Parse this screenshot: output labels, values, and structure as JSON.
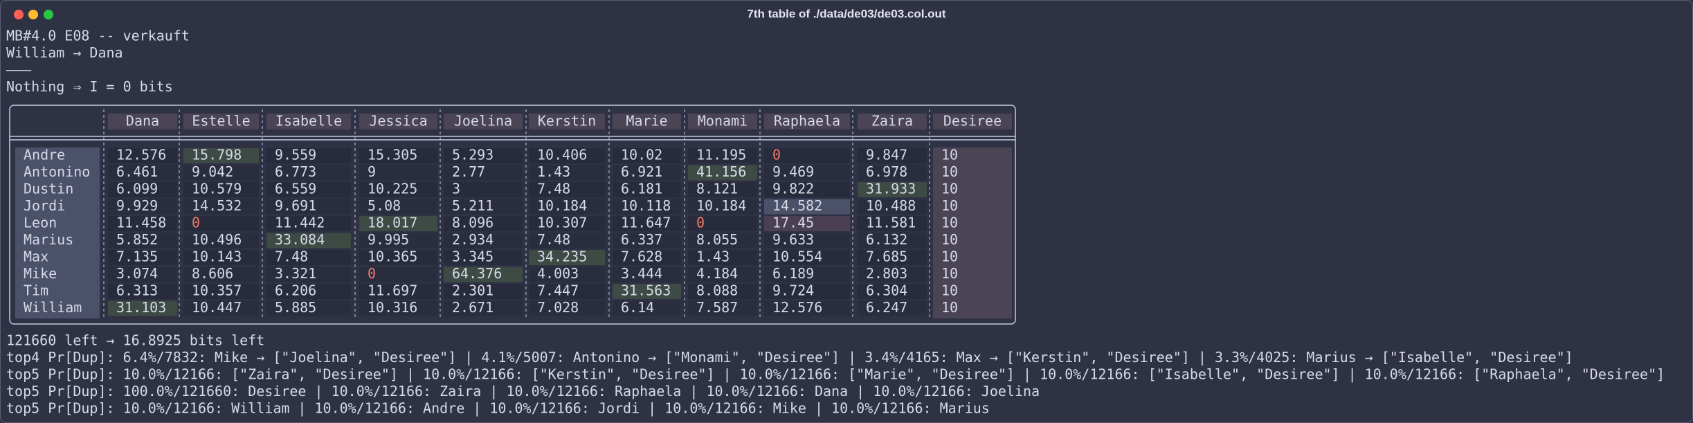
{
  "window_title": "7th table of ./data/de03/de03.col.out",
  "header_lines": [
    "MB#4.0 E08 -- verkauft",
    "William → Dana",
    "———",
    "Nothing ⇒ I = 0 bits"
  ],
  "table": {
    "columns": [
      "Dana",
      "Estelle",
      "Isabelle",
      "Jessica",
      "Joelina",
      "Kerstin",
      "Marie",
      "Monami",
      "Raphaela",
      "Zaira",
      "Desiree"
    ],
    "rows": [
      {
        "label": "Andre",
        "cells": [
          "12.576",
          "15.798",
          "9.559",
          "15.305",
          "5.293",
          "10.406",
          "10.02",
          "11.195",
          "0",
          "9.847",
          "10"
        ]
      },
      {
        "label": "Antonino",
        "cells": [
          "6.461",
          "9.042",
          "6.773",
          "9",
          "2.77",
          "1.43",
          "6.921",
          "41.156",
          "9.469",
          "6.978",
          "10"
        ]
      },
      {
        "label": "Dustin",
        "cells": [
          "6.099",
          "10.579",
          "6.559",
          "10.225",
          "3",
          "7.48",
          "6.181",
          "8.121",
          "9.822",
          "31.933",
          "10"
        ]
      },
      {
        "label": "Jordi",
        "cells": [
          "9.929",
          "14.532",
          "9.691",
          "5.08",
          "5.211",
          "10.184",
          "10.118",
          "10.184",
          "14.582",
          "10.488",
          "10"
        ]
      },
      {
        "label": "Leon",
        "cells": [
          "11.458",
          "0",
          "11.442",
          "18.017",
          "8.096",
          "10.307",
          "11.647",
          "0",
          "17.45",
          "11.581",
          "10"
        ]
      },
      {
        "label": "Marius",
        "cells": [
          "5.852",
          "10.496",
          "33.084",
          "9.995",
          "2.934",
          "7.48",
          "6.337",
          "8.055",
          "9.633",
          "6.132",
          "10"
        ]
      },
      {
        "label": "Max",
        "cells": [
          "7.135",
          "10.143",
          "7.48",
          "10.365",
          "3.345",
          "34.235",
          "7.628",
          "1.43",
          "10.554",
          "7.685",
          "10"
        ]
      },
      {
        "label": "Mike",
        "cells": [
          "3.074",
          "8.606",
          "3.321",
          "0",
          "64.376",
          "4.003",
          "3.444",
          "4.184",
          "6.189",
          "2.803",
          "10"
        ]
      },
      {
        "label": "Tim",
        "cells": [
          "6.313",
          "10.357",
          "6.206",
          "11.697",
          "2.301",
          "7.447",
          "31.563",
          "8.088",
          "9.724",
          "6.304",
          "10"
        ]
      },
      {
        "label": "William",
        "cells": [
          "31.103",
          "10.447",
          "5.885",
          "10.316",
          "2.671",
          "7.028",
          "6.14",
          "7.587",
          "12.576",
          "6.247",
          "10"
        ]
      }
    ]
  },
  "footer_lines": [
    "121660 left → 16.8925 bits left",
    "top4 Pr[Dup]: 6.4%/7832: Mike → [\"Joelina\", \"Desiree\"] | 4.1%/5007: Antonino → [\"Monami\", \"Desiree\"] | 3.4%/4165: Max → [\"Kerstin\", \"Desiree\"] | 3.3%/4025: Marius → [\"Isabelle\", \"Desiree\"]",
    "top5 Pr[Dup]: 10.0%/12166: [\"Zaira\", \"Desiree\"] | 10.0%/12166: [\"Kerstin\", \"Desiree\"] | 10.0%/12166: [\"Marie\", \"Desiree\"] | 10.0%/12166: [\"Isabelle\", \"Desiree\"] | 10.0%/12166: [\"Raphaela\", \"Desiree\"]",
    "top5 Pr[Dup]: 100.0%/121660: Desiree | 10.0%/12166: Zaira | 10.0%/12166: Raphaela | 10.0%/12166: Dana | 10.0%/12166: Joelina",
    "top5 Pr[Dup]: 10.0%/12166: William | 10.0%/12166: Andre | 10.0%/12166: Jordi | 10.0%/12166: Mike | 10.0%/12166: Marius"
  ]
}
